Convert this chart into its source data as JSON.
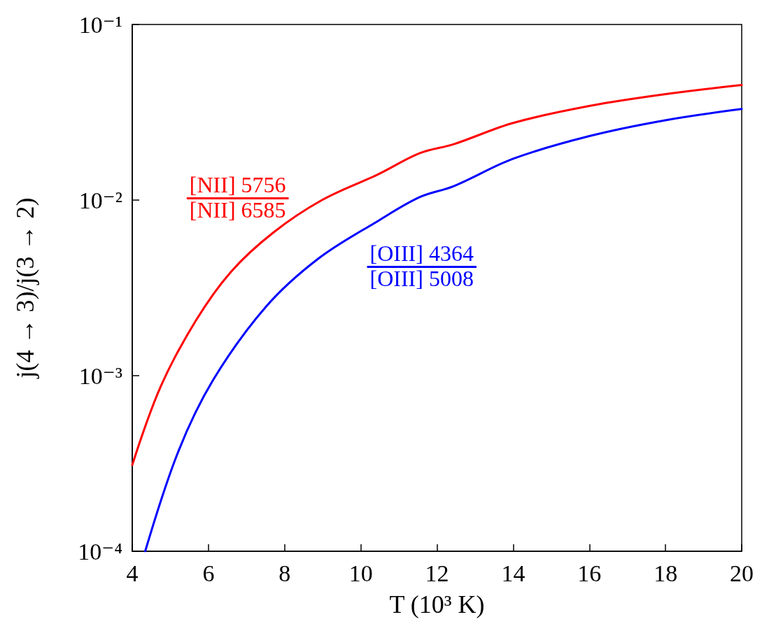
{
  "chart_data": {
    "type": "line",
    "xlabel": "T (10³ K)",
    "ylabel": "j(4 → 3)/j(3 → 2)",
    "log": "y",
    "grid": false,
    "marker": "none",
    "line_style": "solid",
    "xlim": [
      4,
      20
    ],
    "xticks": [
      4,
      6,
      8,
      10,
      12,
      14,
      16,
      18,
      20
    ],
    "ylim": [
      0.0001,
      0.1
    ],
    "yticks": [
      {
        "value": 0.0001,
        "label": "10⁻⁴"
      },
      {
        "value": 0.001,
        "label": "10⁻³"
      },
      {
        "value": 0.01,
        "label": "10⁻²"
      },
      {
        "value": 0.1,
        "label": "10⁻¹"
      }
    ],
    "annotations": [
      "[NII] 5756",
      "[NII] 6585",
      "[OIII] 4364",
      "[OIII] 5008"
    ],
    "series": [
      {
        "color": "#ff0000",
        "x": [
          4,
          4.75,
          5.67,
          6.59,
          7.69,
          8.98,
          10.45,
          11.55,
          12.44,
          14,
          16.02,
          18.04,
          20
        ],
        "values": [
          0.00031,
          0.00087,
          0.00206,
          0.0039,
          0.0065,
          0.01,
          0.014,
          0.0185,
          0.0208,
          0.0275,
          0.0344,
          0.0402,
          0.0452
        ]
      },
      {
        "color": "#0000ff",
        "x": [
          4.34,
          5.21,
          6.13,
          7.51,
          8.89,
          10.45,
          11.55,
          12.44,
          14,
          16.02,
          18.04,
          20
        ],
        "values": [
          0.0001,
          0.00037,
          0.00095,
          0.00247,
          0.00465,
          0.0076,
          0.0104,
          0.012,
          0.0172,
          0.0232,
          0.0286,
          0.033
        ]
      }
    ]
  }
}
